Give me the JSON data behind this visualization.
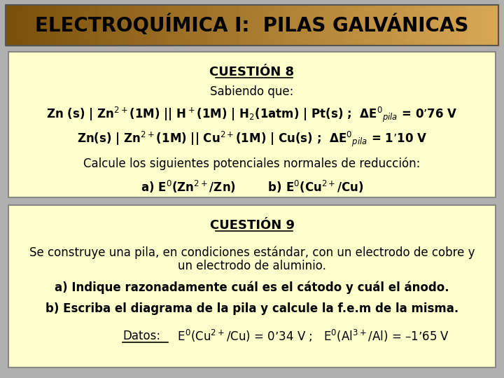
{
  "title": "ELECTROQUÍMICA I:  PILAS GALVÁNICAS",
  "box_bg_color": "#FFFFCC",
  "background_color": "#B0B0B0",
  "section1_title": "CUESTIÓN 8",
  "section1_subtitle": "Sabiendo que:",
  "section1_line1": "Zn (s) | Zn$^{2+}$(1M) || H$^+$(1M) | H$_2$(1atm) | Pt(s) ;  ΔE$^0$$_{pila}$ = 0’76 V",
  "section1_line2": "Zn(s) | Zn$^{2+}$(1M) || Cu$^{2+}$(1M) | Cu(s) ;  ΔE$^0$$_{pila}$ = 1’10 V",
  "section1_calc": "Calcule los siguientes potenciales normales de reducción:",
  "section1_ans": "a) E$^0$(Zn$^{2+}$/Zn)        b) E$^0$(Cu$^{2+}$/Cu)",
  "section2_title": "CUESTIÓN 9",
  "section2_intro1": "Se construye una pila, en condiciones estándar, con un electrodo de cobre y",
  "section2_intro2": "un electrodo de aluminio.",
  "section2_a": "a) Indique razonadamente cuál es el cátodo y cuál el ánodo.",
  "section2_b": "b) Escriba el diagrama de la pila y calcule la f.e.m de la misma.",
  "section2_datos_label": "Datos:",
  "section2_datos_rest": "  E$^0$(Cu$^{2+}$/Cu) = 0’34 V ;   E$^0$(Al$^{3+}$/Al) = –1’65 V"
}
